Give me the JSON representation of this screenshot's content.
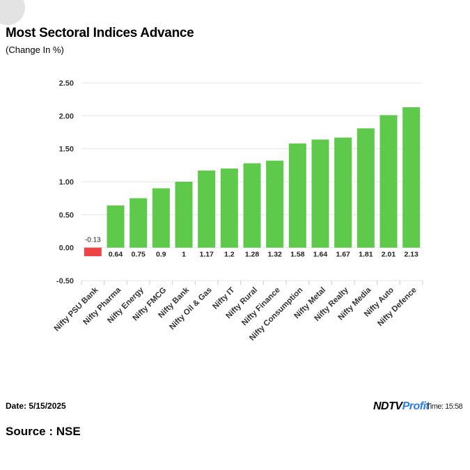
{
  "title": "Most Sectoral Indices Advance",
  "subtitle": "(Change In %)",
  "footer": {
    "date": "Date: 5/15/2025",
    "source": "Source : NSE",
    "brand_main": "NDTV",
    "brand_accent": "Profit",
    "time": "Time: 15:58"
  },
  "colors": {
    "positive": "#5ec94a",
    "negative": "#ef4444",
    "grid": "#e6e6e6"
  },
  "chart_data": {
    "type": "bar",
    "categories": [
      "Nifty PSU Bank",
      "Nifty Pharma",
      "Nifty Energy",
      "Nifty FMCG",
      "Nifty Bank",
      "Nifty Oil & Gas",
      "Nifty IT",
      "Nifty Rural",
      "Nifty Finance",
      "Nifty Consumption",
      "Nifty Metal",
      "Nifty Realty",
      "Nifty Media",
      "Nifty Auto",
      "Nifty Defence"
    ],
    "values": [
      -0.13,
      0.64,
      0.75,
      0.9,
      1,
      1.17,
      1.2,
      1.28,
      1.32,
      1.58,
      1.64,
      1.67,
      1.81,
      2.01,
      2.13
    ],
    "data_labels": [
      "-0.13",
      "0.64",
      "0.75",
      "0.9",
      "1",
      "1.17",
      "1.2",
      "1.28",
      "1.32",
      "1.58",
      "1.64",
      "1.67",
      "1.81",
      "2.01",
      "2.13"
    ],
    "yticks": [
      "-0.50",
      "0.00",
      "0.50",
      "1.00",
      "1.50",
      "2.00",
      "2.50"
    ],
    "ylim": [
      -0.5,
      2.5
    ],
    "grid": true,
    "legend": "none"
  }
}
